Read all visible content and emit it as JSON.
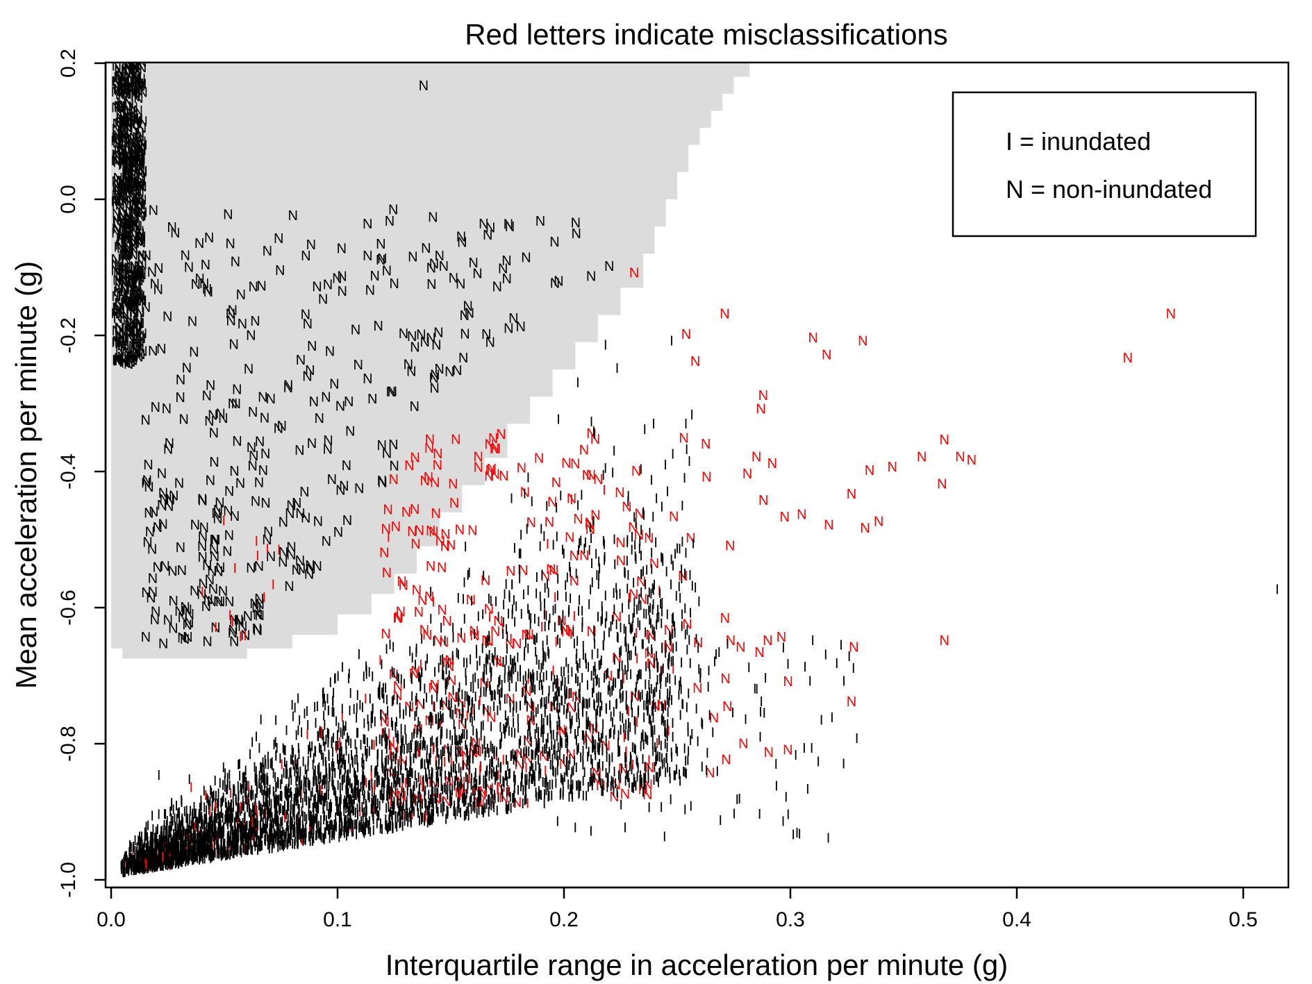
{
  "chart_data": {
    "type": "scatter",
    "title": "Red letters indicate misclassifications",
    "xlabel": "Interquartile range in acceleration per minute (g)",
    "ylabel": "Mean acceleration per minute (g)",
    "xlim": [
      0.0,
      0.52
    ],
    "ylim": [
      -1.01,
      0.2
    ],
    "x_ticks": [
      "0.0",
      "0.1",
      "0.2",
      "0.3",
      "0.4",
      "0.5"
    ],
    "x_tick_values": [
      0.0,
      0.1,
      0.2,
      0.3,
      0.4,
      0.5
    ],
    "y_ticks": [
      "-1.0",
      "-0.8",
      "-0.6",
      "-0.4",
      "-0.2",
      "0.0",
      "0.2"
    ],
    "y_tick_values": [
      -1.0,
      -0.8,
      -0.6,
      -0.4,
      -0.2,
      0.0,
      0.2
    ],
    "grid": false,
    "legend_placement": "top-right",
    "legend": [
      "I = inundated",
      "N = non-inundated"
    ],
    "colors": {
      "correct": "#000000",
      "misclassified": "#ff0000",
      "region": "#dcdcdc"
    },
    "non_inundated_region": [
      [
        0.0,
        0.2
      ],
      [
        0.282,
        0.2
      ],
      [
        0.282,
        0.18
      ],
      [
        0.275,
        0.18
      ],
      [
        0.275,
        0.155
      ],
      [
        0.27,
        0.155
      ],
      [
        0.27,
        0.13
      ],
      [
        0.265,
        0.13
      ],
      [
        0.265,
        0.105
      ],
      [
        0.26,
        0.105
      ],
      [
        0.26,
        0.08
      ],
      [
        0.255,
        0.08
      ],
      [
        0.255,
        0.04
      ],
      [
        0.25,
        0.04
      ],
      [
        0.25,
        0.0
      ],
      [
        0.245,
        0.0
      ],
      [
        0.245,
        -0.04
      ],
      [
        0.24,
        -0.04
      ],
      [
        0.24,
        -0.08
      ],
      [
        0.235,
        -0.08
      ],
      [
        0.235,
        -0.13
      ],
      [
        0.225,
        -0.13
      ],
      [
        0.225,
        -0.17
      ],
      [
        0.215,
        -0.17
      ],
      [
        0.215,
        -0.21
      ],
      [
        0.205,
        -0.21
      ],
      [
        0.205,
        -0.25
      ],
      [
        0.195,
        -0.25
      ],
      [
        0.195,
        -0.29
      ],
      [
        0.185,
        -0.29
      ],
      [
        0.185,
        -0.33
      ],
      [
        0.175,
        -0.33
      ],
      [
        0.175,
        -0.38
      ],
      [
        0.165,
        -0.38
      ],
      [
        0.165,
        -0.42
      ],
      [
        0.155,
        -0.42
      ],
      [
        0.155,
        -0.46
      ],
      [
        0.145,
        -0.46
      ],
      [
        0.145,
        -0.51
      ],
      [
        0.135,
        -0.51
      ],
      [
        0.135,
        -0.55
      ],
      [
        0.125,
        -0.55
      ],
      [
        0.125,
        -0.58
      ],
      [
        0.115,
        -0.58
      ],
      [
        0.115,
        -0.61
      ],
      [
        0.1,
        -0.61
      ],
      [
        0.1,
        -0.64
      ],
      [
        0.08,
        -0.64
      ],
      [
        0.08,
        -0.66
      ],
      [
        0.06,
        -0.66
      ],
      [
        0.06,
        -0.675
      ],
      [
        0.005,
        -0.675
      ],
      [
        0.005,
        -0.66
      ],
      [
        0.0,
        -0.66
      ]
    ],
    "annotations": [
      {
        "label": "N",
        "x": 0.138,
        "y": 0.16,
        "misclassified": false
      },
      {
        "label": "N",
        "x": 0.155,
        "y": -0.07,
        "misclassified": false
      },
      {
        "label": "N",
        "x": 0.145,
        "y": -0.09,
        "misclassified": false
      },
      {
        "label": "N",
        "x": 0.16,
        "y": -0.1,
        "misclassified": false
      },
      {
        "label": "N",
        "x": 0.102,
        "y": -0.12,
        "misclassified": false
      },
      {
        "label": "N",
        "x": 0.196,
        "y": -0.13,
        "misclassified": false
      },
      {
        "label": "N",
        "x": 0.212,
        "y": -0.12,
        "misclassified": false
      },
      {
        "label": "N",
        "x": 0.22,
        "y": -0.105,
        "misclassified": false
      },
      {
        "label": "N",
        "x": 0.231,
        "y": -0.115,
        "misclassified": true
      },
      {
        "label": "N",
        "x": 0.271,
        "y": -0.175,
        "misclassified": true
      },
      {
        "label": "N",
        "x": 0.254,
        "y": -0.205,
        "misclassified": true
      },
      {
        "label": "N",
        "x": 0.31,
        "y": -0.21,
        "misclassified": true
      },
      {
        "label": "N",
        "x": 0.316,
        "y": -0.235,
        "misclassified": true
      },
      {
        "label": "N",
        "x": 0.332,
        "y": -0.215,
        "misclassified": true
      },
      {
        "label": "N",
        "x": 0.468,
        "y": -0.175,
        "misclassified": true
      },
      {
        "label": "N",
        "x": 0.449,
        "y": -0.24,
        "misclassified": true
      },
      {
        "label": "N",
        "x": 0.258,
        "y": -0.245,
        "misclassified": true
      },
      {
        "label": "N",
        "x": 0.288,
        "y": -0.295,
        "misclassified": true
      },
      {
        "label": "N",
        "x": 0.287,
        "y": -0.315,
        "misclassified": true
      },
      {
        "label": "N",
        "x": 0.368,
        "y": -0.36,
        "misclassified": true
      },
      {
        "label": "N",
        "x": 0.358,
        "y": -0.385,
        "misclassified": true
      },
      {
        "label": "N",
        "x": 0.375,
        "y": -0.385,
        "misclassified": true
      },
      {
        "label": "N",
        "x": 0.38,
        "y": -0.39,
        "misclassified": true
      },
      {
        "label": "N",
        "x": 0.345,
        "y": -0.4,
        "misclassified": true
      },
      {
        "label": "N",
        "x": 0.335,
        "y": -0.405,
        "misclassified": true
      },
      {
        "label": "N",
        "x": 0.367,
        "y": -0.425,
        "misclassified": true
      },
      {
        "label": "N",
        "x": 0.327,
        "y": -0.44,
        "misclassified": true
      },
      {
        "label": "N",
        "x": 0.305,
        "y": -0.47,
        "misclassified": true
      },
      {
        "label": "N",
        "x": 0.317,
        "y": -0.485,
        "misclassified": true
      },
      {
        "label": "N",
        "x": 0.333,
        "y": -0.49,
        "misclassified": true
      },
      {
        "label": "N",
        "x": 0.339,
        "y": -0.48,
        "misclassified": true
      },
      {
        "label": "N",
        "x": 0.285,
        "y": -0.385,
        "misclassified": true
      },
      {
        "label": "N",
        "x": 0.292,
        "y": -0.395,
        "misclassified": true
      },
      {
        "label": "N",
        "x": 0.281,
        "y": -0.41,
        "misclassified": true
      },
      {
        "label": "N",
        "x": 0.368,
        "y": -0.655,
        "misclassified": true
      },
      {
        "label": "N",
        "x": 0.328,
        "y": -0.665,
        "misclassified": true
      },
      {
        "label": "N",
        "x": 0.327,
        "y": -0.745,
        "misclassified": true
      },
      {
        "label": "N",
        "x": 0.278,
        "y": -0.665,
        "misclassified": true
      },
      {
        "label": "N",
        "x": 0.29,
        "y": -0.655,
        "misclassified": true
      },
      {
        "label": "N",
        "x": 0.296,
        "y": -0.65,
        "misclassified": true
      },
      {
        "label": "N",
        "x": 0.259,
        "y": -0.725,
        "misclassified": true
      },
      {
        "label": "N",
        "x": 0.246,
        "y": -0.665,
        "misclassified": true
      },
      {
        "label": "I",
        "x": 0.515,
        "y": -0.58,
        "misclassified": false
      },
      {
        "label": "I",
        "x": 0.243,
        "y": -0.9,
        "misclassified": false
      },
      {
        "label": "I",
        "x": 0.227,
        "y": -0.93,
        "misclassified": false
      },
      {
        "label": "I",
        "x": 0.205,
        "y": -0.93,
        "misclassified": false
      }
    ]
  }
}
